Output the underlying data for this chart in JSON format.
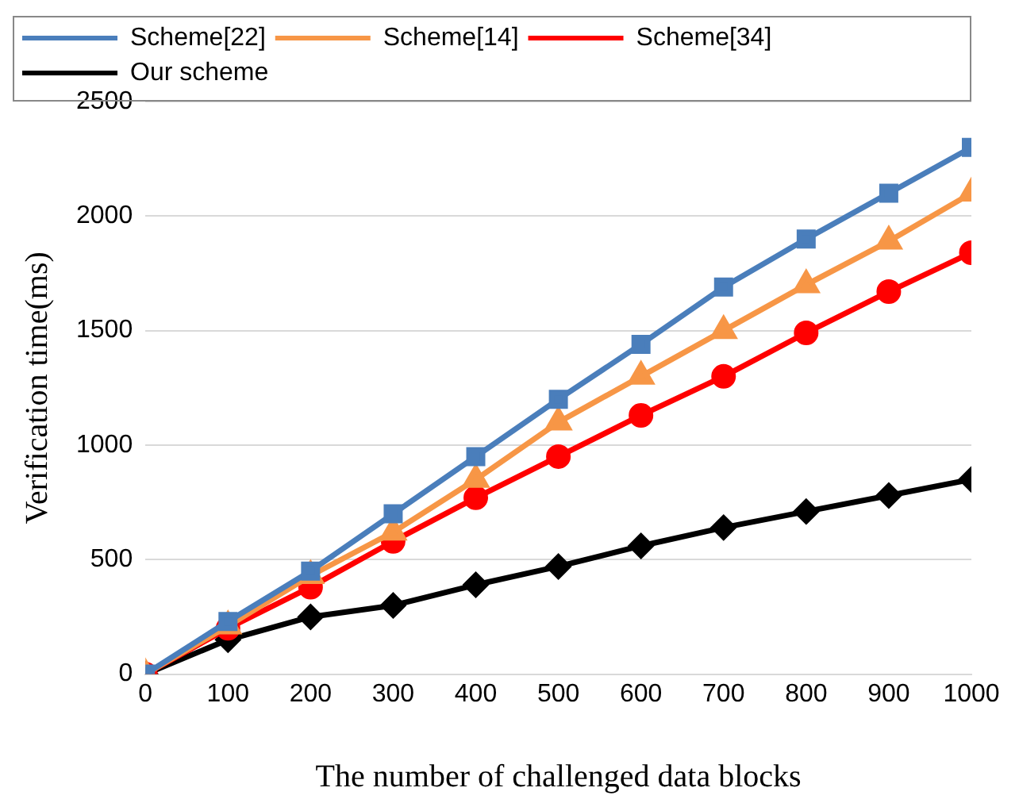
{
  "chart_data": {
    "type": "line",
    "xlabel": "The number of challenged data blocks",
    "ylabel": "Verification time(ms)",
    "x": [
      0,
      100,
      200,
      300,
      400,
      500,
      600,
      700,
      800,
      900,
      1000
    ],
    "series": [
      {
        "name": "Scheme[22]",
        "color": "#4a7ebb",
        "marker": "square",
        "values": [
          0,
          230,
          450,
          700,
          950,
          1200,
          1440,
          1690,
          1900,
          2100,
          2300
        ]
      },
      {
        "name": "Scheme[14]",
        "color": "#f79646",
        "marker": "triangle",
        "values": [
          0,
          210,
          430,
          620,
          850,
          1100,
          1300,
          1500,
          1700,
          1890,
          2100
        ]
      },
      {
        "name": "Scheme[34]",
        "color": "#ff0000",
        "marker": "circle",
        "values": [
          0,
          200,
          380,
          580,
          770,
          950,
          1130,
          1300,
          1490,
          1670,
          1840
        ]
      },
      {
        "name": "Our scheme",
        "color": "#000000",
        "marker": "diamond",
        "values": [
          0,
          150,
          250,
          300,
          390,
          470,
          560,
          640,
          710,
          780,
          850
        ]
      }
    ],
    "xlim": [
      0,
      1000
    ],
    "xticks": [
      0,
      100,
      200,
      300,
      400,
      500,
      600,
      700,
      800,
      900,
      1000
    ],
    "ylim": [
      0,
      2500
    ],
    "yticks": [
      0,
      500,
      1000,
      1500,
      2000,
      2500
    ],
    "grid": "y",
    "legend": "top left",
    "line_style": "solid"
  }
}
